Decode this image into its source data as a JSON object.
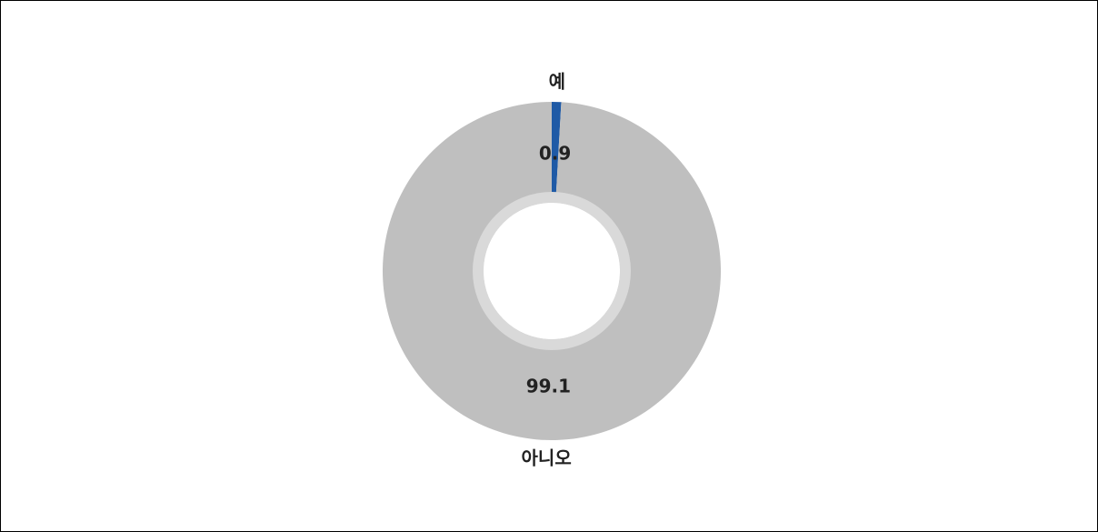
{
  "chart_data": {
    "type": "donut",
    "categories": [
      "예",
      "아니오"
    ],
    "values": [
      0.9,
      99.1
    ],
    "colors": [
      "#1f5aa6",
      "#bfbfbf"
    ]
  }
}
